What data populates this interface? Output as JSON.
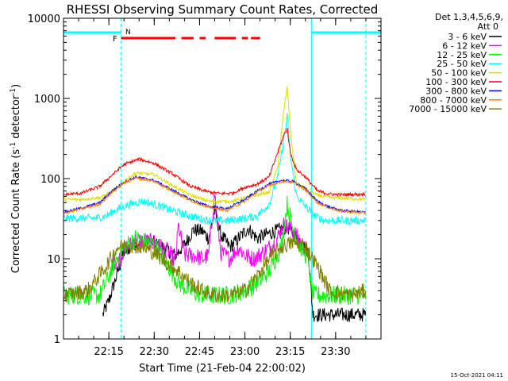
{
  "title": "RHESSI Observing Summary Count Rates, Corrected",
  "footer_timestamp": "15-Oct-2021 04:11",
  "legend": {
    "header_line1": "Det 1,3,4,5,6,9,",
    "header_line2": "Att 0",
    "entries": [
      {
        "label": "3 - 6 keV",
        "color": "#000000"
      },
      {
        "label": "6 - 12 keV",
        "color": "#ff00ff"
      },
      {
        "label": "12 - 25 keV",
        "color": "#00ff00"
      },
      {
        "label": "25 - 50 keV",
        "color": "#00ffff"
      },
      {
        "label": "50 - 100 keV",
        "color": "#dddd00"
      },
      {
        "label": "100 - 300 keV",
        "color": "#ff0000"
      },
      {
        "label": "300 - 800 keV",
        "color": "#0000ff"
      },
      {
        "label": "800 - 7000 keV",
        "color": "#ff8000"
      },
      {
        "label": "7000 - 15000 keV",
        "color": "#808000"
      }
    ]
  },
  "flags": {
    "night_label": "N",
    "flare_label": "F",
    "night_color": "#00ffff",
    "flare_color": "#ff0000"
  },
  "chart_data": {
    "type": "line",
    "title": "RHESSI Observing Summary Count Rates, Corrected",
    "xlabel": "Start Time (21-Feb-04 22:00:02)",
    "ylabel": "Corrected Count Rate (s-1 detector-1)",
    "y_scale": "log",
    "ylim": [
      1,
      10000
    ],
    "xlim_minutes": [
      0,
      105
    ],
    "x_ticks": [
      {
        "label": "22:15",
        "minute": 15
      },
      {
        "label": "22:30",
        "minute": 30
      },
      {
        "label": "22:45",
        "minute": 45
      },
      {
        "label": "23:00",
        "minute": 60
      },
      {
        "label": "23:15",
        "minute": 75
      },
      {
        "label": "23:30",
        "minute": 90
      }
    ],
    "y_ticks": [
      {
        "label": "1",
        "value": 1
      },
      {
        "label": "10",
        "value": 10
      },
      {
        "label": "100",
        "value": 100
      },
      {
        "label": "1000",
        "value": 1000
      },
      {
        "label": "10000",
        "value": 10000
      }
    ],
    "night_intervals_minutes": [
      [
        0,
        19
      ],
      [
        82,
        105
      ]
    ],
    "flare_segments_minutes": [
      [
        19,
        37
      ],
      [
        39,
        43
      ],
      [
        45,
        47
      ],
      [
        50,
        52
      ],
      [
        52,
        57
      ],
      [
        59,
        61
      ],
      [
        62,
        65
      ]
    ],
    "vertical_lines_minutes": [
      0,
      19,
      82,
      100
    ],
    "series": [
      {
        "name": "3 - 6 keV",
        "color": "#000000",
        "x": [
          13,
          15,
          18,
          20,
          24,
          30,
          34,
          37,
          40,
          43,
          46,
          48,
          50,
          52,
          55,
          58,
          61,
          64,
          67,
          70,
          74,
          78,
          81,
          82.5,
          84,
          100
        ],
        "y": [
          2,
          3,
          7,
          12,
          16,
          16,
          13,
          11,
          15,
          23,
          22,
          18,
          40,
          20,
          14,
          18,
          24,
          18,
          20,
          22,
          25,
          17,
          12,
          2,
          2,
          2
        ]
      },
      {
        "name": "6 - 12 keV",
        "color": "#ff00ff",
        "x": [
          16,
          18,
          20,
          24,
          30,
          35,
          37,
          38,
          40,
          43,
          46,
          48,
          50,
          52,
          55,
          58,
          60,
          63,
          66,
          70,
          73,
          76,
          79,
          81
        ],
        "y": [
          9,
          9,
          13,
          17,
          16,
          12,
          9,
          26,
          11,
          11,
          10,
          11,
          65,
          12,
          10,
          14,
          11,
          10,
          12,
          16,
          27,
          22,
          15,
          12
        ]
      },
      {
        "name": "12 - 25 keV",
        "color": "#00ff00",
        "x": [
          0,
          8,
          12,
          14,
          17,
          20,
          24,
          30,
          34,
          38,
          42,
          46,
          50,
          55,
          60,
          64,
          68,
          72,
          74,
          76,
          78,
          81,
          82,
          83,
          88,
          95,
          100
        ],
        "y": [
          3.5,
          3.5,
          3.5,
          5,
          9,
          14,
          18,
          15,
          9,
          5,
          4,
          3.5,
          3.5,
          3.5,
          4,
          5,
          7,
          14,
          48,
          23,
          15,
          10,
          4,
          3.5,
          3.5,
          3.5,
          3.5
        ]
      },
      {
        "name": "25 - 50 keV",
        "color": "#00ffff",
        "x": [
          0,
          5,
          10,
          14,
          18,
          22,
          26,
          30,
          36,
          42,
          48,
          54,
          60,
          64,
          68,
          71,
          73,
          74,
          75,
          77,
          80,
          83,
          86,
          90,
          95,
          100
        ],
        "y": [
          32,
          32,
          32,
          34,
          42,
          48,
          52,
          48,
          40,
          34,
          30,
          30,
          32,
          34,
          48,
          110,
          330,
          600,
          200,
          62,
          45,
          35,
          30,
          30,
          30,
          30
        ]
      },
      {
        "name": "50 - 100 keV",
        "color": "#dddd00",
        "x": [
          0,
          6,
          12,
          16,
          20,
          24,
          30,
          36,
          42,
          48,
          52,
          56,
          60,
          64,
          68,
          71,
          73,
          74,
          75,
          77,
          80,
          84,
          88,
          92,
          100
        ],
        "y": [
          55,
          55,
          58,
          68,
          92,
          118,
          112,
          82,
          62,
          52,
          52,
          52,
          58,
          62,
          68,
          150,
          800,
          1400,
          400,
          88,
          75,
          62,
          58,
          57,
          55
        ]
      },
      {
        "name": "100 - 300 keV",
        "color": "#ff0000",
        "x": [
          0,
          6,
          12,
          16,
          20,
          25,
          30,
          36,
          42,
          48,
          52,
          56,
          60,
          64,
          68,
          71,
          73,
          74,
          75,
          77,
          80,
          84,
          88,
          92,
          100
        ],
        "y": [
          63,
          66,
          80,
          110,
          150,
          175,
          155,
          115,
          80,
          68,
          65,
          66,
          78,
          85,
          105,
          220,
          360,
          420,
          210,
          130,
          105,
          70,
          64,
          63,
          64
        ]
      },
      {
        "name": "300 - 800 keV",
        "color": "#0000ff",
        "x": [
          0,
          6,
          12,
          16,
          20,
          24,
          30,
          36,
          42,
          48,
          54,
          60,
          64,
          68,
          72,
          76,
          80,
          84,
          88,
          92,
          100
        ],
        "y": [
          38,
          43,
          50,
          70,
          90,
          105,
          95,
          72,
          55,
          45,
          42,
          55,
          70,
          85,
          95,
          92,
          75,
          52,
          44,
          40,
          38
        ]
      },
      {
        "name": "800 - 7000 keV",
        "color": "#ff8000",
        "x": [
          0,
          6,
          12,
          16,
          20,
          24,
          30,
          36,
          42,
          48,
          54,
          60,
          64,
          68,
          72,
          76,
          80,
          84,
          88,
          92,
          100
        ],
        "y": [
          37,
          42,
          48,
          67,
          88,
          102,
          92,
          70,
          53,
          44,
          40,
          52,
          68,
          82,
          92,
          90,
          72,
          50,
          43,
          39,
          37
        ]
      },
      {
        "name": "7000 - 15000 keV",
        "color": "#808000",
        "x": [
          0,
          8,
          14,
          18,
          22,
          26,
          30,
          34,
          38,
          42,
          46,
          50,
          55,
          60,
          64,
          68,
          72,
          76,
          80,
          84,
          88,
          95,
          100
        ],
        "y": [
          3.5,
          4,
          8,
          14,
          15,
          14,
          12,
          9,
          7,
          5,
          4,
          3.5,
          3.5,
          4,
          6,
          10,
          14,
          16,
          14,
          8,
          4,
          3.5,
          4
        ]
      }
    ]
  }
}
